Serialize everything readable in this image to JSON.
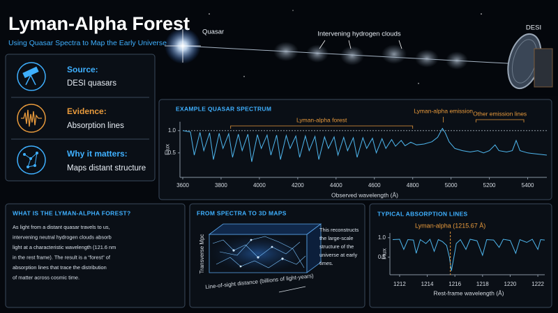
{
  "header": {
    "title": "Lyman-Alpha Forest",
    "subtitle": "Using Quasar Spectra to Map the Early Universe"
  },
  "cards": [
    {
      "title": "Source:",
      "text": "DESI quasars"
    },
    {
      "title": "Evidence:",
      "text": "Absorption lines"
    },
    {
      "title": "Why it matters:",
      "text": "Maps distant structure"
    }
  ],
  "illustration": {
    "quasar_label": "Quasar",
    "clouds_label": "Intervening hydrogen clouds",
    "telescope_label": "DESI"
  },
  "panels": {
    "forest": {
      "title": "WHAT IS THE LYMAN-ALPHA FOREST?",
      "lines": [
        "As light from a distant quasar travels to us,",
        "intervening neutral hydrogen clouds absorb",
        "light at a characteristic wavelength (121.6 nm",
        "in the rest frame). The result is a “forest” of",
        "absorption lines that trace the distribution",
        "of matter across cosmic time."
      ]
    },
    "maps": {
      "title": "FROM SPECTRA TO 3D MAPS",
      "y_label": "Transverse Mpc",
      "x_label": "Line-of-sight distance (billions of light-years)",
      "lines": [
        "This reconstructs",
        "the large-scale",
        "structure of the",
        "universe at early",
        "times."
      ]
    }
  },
  "chart_data": [
    {
      "type": "line",
      "title": "EXAMPLE QUASAR SPECTRUM",
      "x_label": "Observed wavelength (Å)",
      "y_label": "Flux",
      "color": "#4fb8f0",
      "xlim": [
        3600,
        5500
      ],
      "xticks": [
        3600,
        3800,
        4000,
        4200,
        4400,
        4600,
        4800,
        5000,
        5200,
        5400
      ],
      "ylim": [
        -0.05,
        1.2
      ],
      "yticks": [
        0.5,
        {
          "value": 1,
          "label": "1.0"
        }
      ],
      "reference_y": 1,
      "annotations": [
        {
          "text": "Lyman-alpha forest",
          "x": [
            3850,
            4800
          ],
          "color": "#e89a3c"
        },
        {
          "text": "Lyman-alpha emission",
          "x": [
            4960
          ],
          "color": "#e89a3c"
        },
        {
          "text": "Other emission lines",
          "x": [
            5130,
            5380
          ],
          "color": "#e89a3c"
        }
      ],
      "x": [
        3600,
        3640,
        3660,
        3690,
        3710,
        3740,
        3760,
        3790,
        3810,
        3840,
        3860,
        3890,
        3910,
        3940,
        3960,
        3990,
        4010,
        4040,
        4060,
        4090,
        4110,
        4140,
        4160,
        4190,
        4210,
        4240,
        4260,
        4290,
        4310,
        4340,
        4360,
        4390,
        4410,
        4440,
        4460,
        4490,
        4510,
        4540,
        4560,
        4590,
        4610,
        4640,
        4660,
        4690,
        4710,
        4740,
        4760,
        4790,
        4820,
        4860,
        4900,
        4930,
        4955,
        4970,
        4990,
        5020,
        5060,
        5100,
        5140,
        5170,
        5200,
        5230,
        5250,
        5290,
        5320,
        5340,
        5360,
        5400,
        5440,
        5500
      ],
      "values": [
        1.0,
        0.97,
        0.45,
        0.96,
        0.55,
        0.95,
        0.35,
        0.94,
        0.6,
        0.93,
        0.4,
        0.92,
        0.55,
        0.92,
        0.3,
        0.91,
        0.6,
        0.9,
        0.45,
        0.9,
        0.35,
        0.89,
        0.6,
        0.88,
        0.4,
        0.88,
        0.55,
        0.87,
        0.35,
        0.86,
        0.6,
        0.86,
        0.45,
        0.85,
        0.55,
        0.84,
        0.4,
        0.84,
        0.6,
        0.83,
        0.5,
        0.82,
        0.6,
        0.8,
        0.65,
        0.78,
        0.66,
        0.74,
        0.68,
        0.7,
        0.75,
        0.85,
        1.05,
        0.95,
        0.75,
        0.6,
        0.55,
        0.52,
        0.55,
        0.5,
        0.55,
        0.68,
        0.55,
        0.52,
        0.55,
        0.78,
        0.55,
        0.5,
        0.48,
        0.45
      ]
    },
    {
      "type": "line",
      "title": "TYPICAL ABSORPTION LINES",
      "x_label": "Rest-frame wavelength (Å)",
      "y_label": "Flux",
      "color": "#4fb8f0",
      "xlim": [
        1211.5,
        1222.5
      ],
      "xticks": [
        1212,
        1214,
        1216,
        1218,
        1220,
        1222
      ],
      "ylim": [
        0.05,
        1.12
      ],
      "yticks": [
        0.5,
        {
          "value": 1,
          "label": "1.0"
        }
      ],
      "marker": {
        "x": 1215.67,
        "label": "Lyman-alpha (1215.67 Å)",
        "color": "#e89a3c"
      },
      "x": [
        1211.5,
        1212.0,
        1212.3,
        1212.6,
        1213.0,
        1213.2,
        1213.5,
        1213.9,
        1214.2,
        1214.5,
        1214.8,
        1215.1,
        1215.4,
        1215.6,
        1215.75,
        1215.9,
        1216.1,
        1216.4,
        1216.8,
        1217.1,
        1217.6,
        1218.0,
        1218.3,
        1218.8,
        1219.2,
        1219.5,
        1220.0,
        1220.4,
        1220.7,
        1221.2,
        1221.6,
        1222.0,
        1222.2,
        1222.5
      ],
      "values": [
        0.95,
        0.96,
        0.7,
        0.95,
        0.94,
        0.6,
        0.95,
        0.85,
        0.96,
        0.65,
        0.95,
        0.9,
        0.8,
        0.5,
        0.15,
        0.45,
        0.85,
        0.95,
        0.7,
        0.96,
        0.92,
        0.55,
        0.95,
        0.94,
        0.75,
        0.96,
        0.93,
        0.6,
        0.95,
        0.88,
        0.96,
        0.7,
        0.95,
        0.94
      ]
    }
  ]
}
